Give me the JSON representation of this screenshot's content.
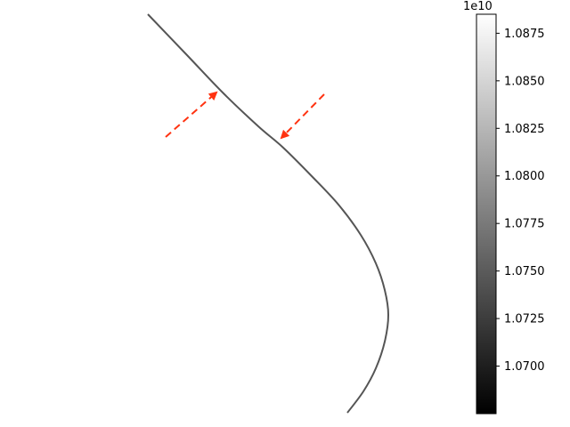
{
  "chart_data": {
    "type": "line",
    "title": "",
    "xlabel": "",
    "ylabel": "",
    "axes_visible": false,
    "grid": false,
    "curve": {
      "color": "#555555",
      "points": [
        [
          166,
          16
        ],
        [
          210,
          62
        ],
        [
          250,
          104
        ],
        [
          290,
          142
        ],
        [
          318,
          166
        ],
        [
          350,
          198
        ],
        [
          380,
          230
        ],
        [
          405,
          264
        ],
        [
          422,
          296
        ],
        [
          432,
          326
        ],
        [
          436,
          354
        ],
        [
          432,
          384
        ],
        [
          422,
          414
        ],
        [
          408,
          440
        ],
        [
          390,
          464
        ]
      ]
    },
    "annotations": [
      {
        "type": "arrow",
        "style": "dashed",
        "color": "#ff3311",
        "from": [
          186,
          154
        ],
        "to": [
          243,
          104
        ]
      },
      {
        "type": "arrow",
        "style": "dashed",
        "color": "#ff3311",
        "from": [
          364,
          106
        ],
        "to": [
          316,
          155
        ]
      }
    ],
    "colorbar": {
      "colormap": "gray",
      "offset_text": "1e10",
      "range": [
        1.0675,
        1.0885
      ],
      "ticks": [
        1.07,
        1.0725,
        1.075,
        1.0775,
        1.08,
        1.0825,
        1.085,
        1.0875
      ],
      "tick_labels": [
        "1.0700",
        "1.0725",
        "1.0750",
        "1.0775",
        "1.0800",
        "1.0825",
        "1.0850",
        "1.0875"
      ]
    }
  }
}
